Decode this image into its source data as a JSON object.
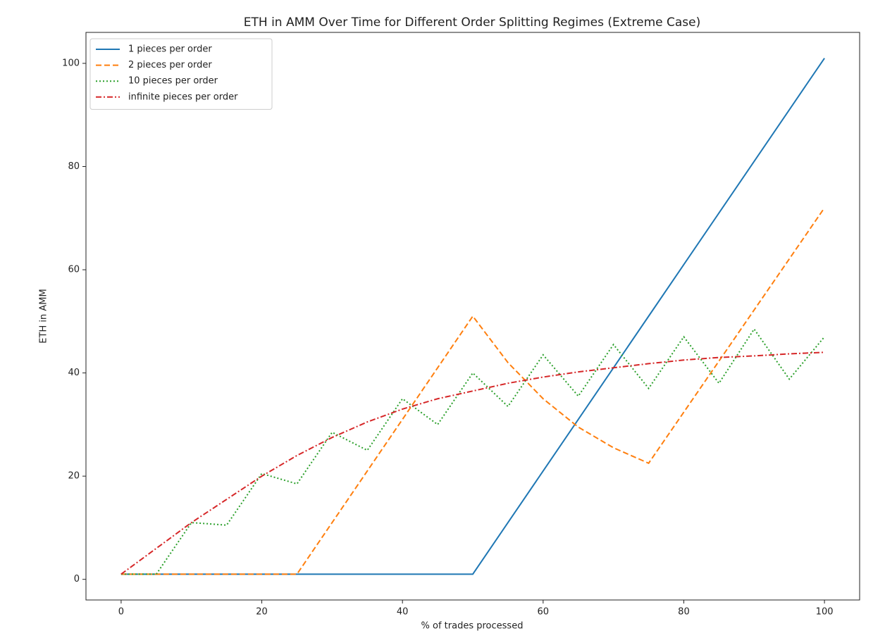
{
  "chart_data": {
    "type": "line",
    "title": "ETH in AMM Over Time for Different Order Splitting Regimes (Extreme Case)",
    "x_label": "% of trades processed",
    "y_label": "ETH in AMM",
    "x": [
      0,
      5,
      10,
      15,
      20,
      25,
      30,
      35,
      40,
      45,
      50,
      55,
      60,
      65,
      70,
      75,
      80,
      85,
      90,
      95,
      100
    ],
    "series": [
      {
        "name": "1 pieces per order",
        "color": "#1f77b4",
        "dash": "solid",
        "values": [
          1,
          1,
          1,
          1,
          1,
          1,
          1,
          1,
          1,
          1,
          1,
          11,
          21,
          31,
          41,
          51,
          61,
          71,
          81,
          91,
          101
        ]
      },
      {
        "name": "2 pieces per order",
        "color": "#ff7f0e",
        "dash": "dashed",
        "values": [
          1,
          1,
          1,
          1,
          1,
          1,
          11,
          21,
          31,
          41,
          51,
          42,
          35,
          29.5,
          25.5,
          22.5,
          32.4,
          42.3,
          52.2,
          62.1,
          72
        ]
      },
      {
        "name": "10 pieces per order",
        "color": "#2ca02c",
        "dash": "dotted",
        "values": [
          1,
          1,
          11,
          10.5,
          20.5,
          18.5,
          28.5,
          25,
          35,
          30,
          40,
          33.5,
          43.5,
          35.5,
          45.5,
          37,
          47,
          38,
          48.5,
          38.8,
          47
        ]
      },
      {
        "name": "infinite pieces per order",
        "color": "#d62728",
        "dash": "dashdot",
        "values": [
          1,
          6,
          11,
          15.5,
          20,
          24,
          27.5,
          30.5,
          33,
          35,
          36.5,
          38,
          39.2,
          40.2,
          41,
          41.8,
          42.5,
          43,
          43.3,
          43.7,
          44
        ]
      }
    ],
    "xlim": [
      -5,
      105
    ],
    "ylim": [
      -4,
      106
    ],
    "xticks": [
      0,
      20,
      40,
      60,
      80,
      100
    ],
    "yticks": [
      0,
      20,
      40,
      60,
      80,
      100
    ],
    "grid": false,
    "legend": "upper-left"
  }
}
